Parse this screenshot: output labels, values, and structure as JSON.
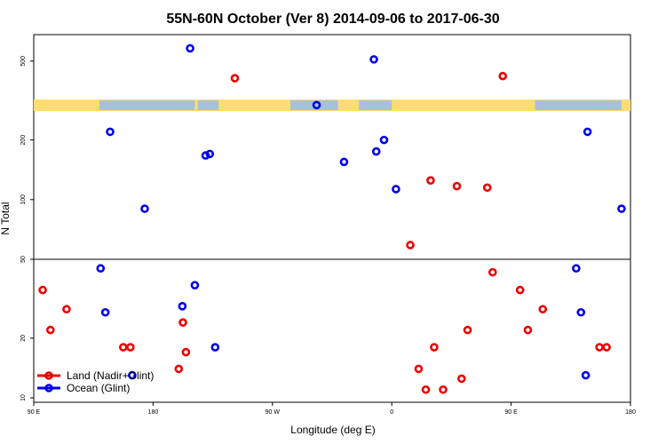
{
  "chart_data": {
    "type": "scatter",
    "title": "55N-60N October (Ver 8)   2014-09-06 to 2017-06-30",
    "xlabel": "Longitude (deg E)",
    "ylabel": "N Total",
    "y_scale": "log",
    "ylim": [
      9.5,
      680
    ],
    "x_tick_labels": [
      "90 E",
      "180",
      "90 W",
      "0",
      "90 E",
      "180"
    ],
    "y_tick_labels": [
      "10",
      "20",
      "50",
      "100",
      "200",
      "500"
    ],
    "y_ticks": [
      10,
      20,
      50,
      100,
      200,
      500
    ],
    "reference_line_y": 50,
    "map_band": {
      "y_range": [
        280,
        320
      ],
      "land_color": "#fddc73",
      "ocean_color": "#a9bfdd"
    },
    "legend_position": "bottom-left",
    "series": [
      {
        "name": "Land (Nadir+Glint)",
        "color": "#ee0000",
        "points": [
          [
            0.015,
            35
          ],
          [
            0.028,
            22
          ],
          [
            0.055,
            28
          ],
          [
            0.15,
            18
          ],
          [
            0.162,
            18
          ],
          [
            0.243,
            14
          ],
          [
            0.25,
            24
          ],
          [
            0.255,
            17
          ],
          [
            0.337,
            410
          ],
          [
            0.631,
            59
          ],
          [
            0.645,
            14
          ],
          [
            0.657,
            11
          ],
          [
            0.665,
            125
          ],
          [
            0.671,
            18
          ],
          [
            0.686,
            11
          ],
          [
            0.709,
            117
          ],
          [
            0.717,
            12.5
          ],
          [
            0.727,
            22
          ],
          [
            0.76,
            115
          ],
          [
            0.769,
            43
          ],
          [
            0.786,
            420
          ],
          [
            0.815,
            35
          ],
          [
            0.828,
            22
          ],
          [
            0.853,
            28
          ],
          [
            0.948,
            18
          ],
          [
            0.96,
            18
          ]
        ]
      },
      {
        "name": "Ocean (Glint)",
        "color": "#0000ee",
        "points": [
          [
            0.112,
            45
          ],
          [
            0.12,
            27
          ],
          [
            0.128,
            220
          ],
          [
            0.165,
            13
          ],
          [
            0.186,
            90
          ],
          [
            0.249,
            29
          ],
          [
            0.262,
            580
          ],
          [
            0.27,
            37
          ],
          [
            0.288,
            167
          ],
          [
            0.295,
            170
          ],
          [
            0.304,
            18
          ],
          [
            0.474,
            300
          ],
          [
            0.52,
            155
          ],
          [
            0.57,
            510
          ],
          [
            0.574,
            175
          ],
          [
            0.587,
            200
          ],
          [
            0.607,
            113
          ],
          [
            0.909,
            45
          ],
          [
            0.917,
            27
          ],
          [
            0.925,
            13
          ],
          [
            0.928,
            220
          ],
          [
            0.985,
            90
          ]
        ]
      }
    ]
  }
}
